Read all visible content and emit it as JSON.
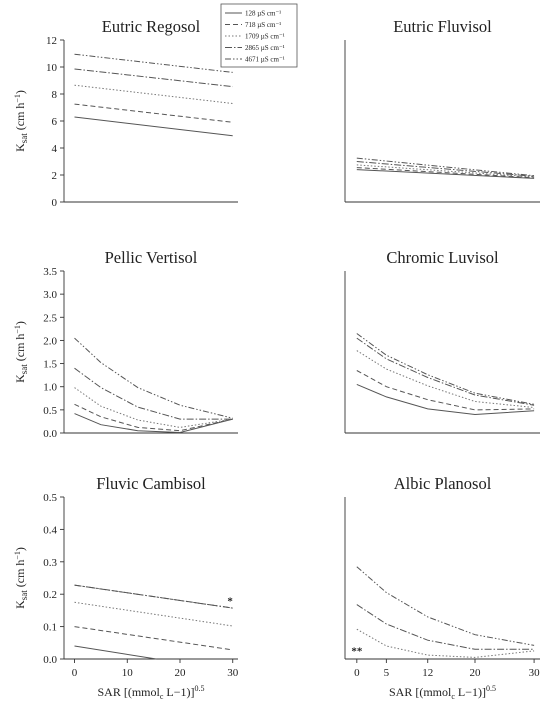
{
  "legend": {
    "entries": [
      "128 µS cm⁻¹",
      "718 µS cm⁻¹",
      "1709 µS cm⁻¹",
      "2865 µS cm⁻¹",
      "4671 µS cm⁻¹"
    ]
  },
  "series_styles": [
    {
      "color": "#555555",
      "dash": ""
    },
    {
      "color": "#555555",
      "dash": "5,3"
    },
    {
      "color": "#777777",
      "dash": "1.5,2"
    },
    {
      "color": "#555555",
      "dash": "7,2,1.5,2"
    },
    {
      "color": "#555555",
      "dash": "6,2,1.5,2,1.5,2"
    }
  ],
  "ylabel_parts": {
    "main": "K",
    "sub": "sat",
    "rest": " (cm h",
    "sup": "−1",
    "close": ")"
  },
  "xlabel_text": "SAR [(mmol",
  "xlabel_sub": "c",
  "xlabel_mid": " L−1)]",
  "xlabel_sup": "0.5",
  "chart_data": [
    {
      "type": "line",
      "title": "Eutric Regosol",
      "ylabel": "Ksat (cm h−1)",
      "xlabel": "",
      "ylim": [
        0,
        12
      ],
      "yticks": [
        0,
        2,
        4,
        6,
        8,
        10,
        12
      ],
      "xlim": [
        -2,
        31
      ],
      "show_y_ticks": true,
      "show_x_ticks": false,
      "series": [
        {
          "x": [
            0,
            30
          ],
          "values": [
            6.3,
            4.9
          ]
        },
        {
          "x": [
            0,
            30
          ],
          "values": [
            7.25,
            5.9
          ]
        },
        {
          "x": [
            0,
            30
          ],
          "values": [
            8.65,
            7.3
          ]
        },
        {
          "x": [
            0,
            30
          ],
          "values": [
            9.85,
            8.55
          ]
        },
        {
          "x": [
            0,
            30
          ],
          "values": [
            10.95,
            9.6
          ]
        }
      ],
      "annotation": ""
    },
    {
      "type": "line",
      "title": "Eutric Fluvisol",
      "ylabel": "",
      "xlabel": "",
      "ylim": [
        0,
        12
      ],
      "xlim": [
        -2,
        31
      ],
      "show_y_ticks": false,
      "show_x_ticks": false,
      "series": [
        {
          "x": [
            0,
            30
          ],
          "values": [
            2.4,
            1.75
          ]
        },
        {
          "x": [
            0,
            30
          ],
          "values": [
            2.55,
            1.8
          ]
        },
        {
          "x": [
            0,
            30
          ],
          "values": [
            2.75,
            1.85
          ]
        },
        {
          "x": [
            0,
            30
          ],
          "values": [
            3.0,
            1.9
          ]
        },
        {
          "x": [
            0,
            30
          ],
          "values": [
            3.25,
            1.95
          ]
        }
      ],
      "annotation": ""
    },
    {
      "type": "line",
      "title": "Pellic Vertisol",
      "ylabel": "Ksat (cm h−1)",
      "xlabel": "",
      "ylim": [
        0,
        3.5
      ],
      "yticks": [
        0.0,
        0.5,
        1.0,
        1.5,
        2.0,
        2.5,
        3.0,
        3.5
      ],
      "ytick_labels": [
        "0.0",
        "0.5",
        "1.0",
        "1.5",
        "2.0",
        "2.5",
        "3.0",
        "3.5"
      ],
      "xlim": [
        -2,
        31
      ],
      "show_y_ticks": true,
      "show_x_ticks": false,
      "series": [
        {
          "x": [
            0,
            5,
            12,
            20,
            30
          ],
          "values": [
            0.42,
            0.18,
            0.05,
            0.01,
            0.3
          ]
        },
        {
          "x": [
            0,
            5,
            12,
            20,
            30
          ],
          "values": [
            0.62,
            0.35,
            0.12,
            0.05,
            0.3
          ]
        },
        {
          "x": [
            0,
            5,
            12,
            20,
            30
          ],
          "values": [
            0.98,
            0.58,
            0.28,
            0.12,
            0.3
          ]
        },
        {
          "x": [
            0,
            5,
            12,
            20,
            30
          ],
          "values": [
            1.4,
            0.98,
            0.56,
            0.3,
            0.3
          ]
        },
        {
          "x": [
            0,
            5,
            12,
            20,
            30
          ],
          "values": [
            2.05,
            1.52,
            0.98,
            0.6,
            0.32
          ]
        }
      ],
      "annotation": ""
    },
    {
      "type": "line",
      "title": "Chromic Luvisol",
      "ylabel": "",
      "xlabel": "",
      "ylim": [
        0,
        3.5
      ],
      "xlim": [
        -2,
        31
      ],
      "show_y_ticks": false,
      "show_x_ticks": false,
      "series": [
        {
          "x": [
            0,
            5,
            12,
            20,
            30
          ],
          "values": [
            1.05,
            0.78,
            0.52,
            0.4,
            0.48
          ]
        },
        {
          "x": [
            0,
            5,
            12,
            20,
            30
          ],
          "values": [
            1.35,
            1.0,
            0.72,
            0.5,
            0.52
          ]
        },
        {
          "x": [
            0,
            5,
            12,
            20,
            30
          ],
          "values": [
            1.78,
            1.38,
            1.02,
            0.68,
            0.55
          ]
        },
        {
          "x": [
            0,
            5,
            12,
            20,
            30
          ],
          "values": [
            2.05,
            1.6,
            1.2,
            0.82,
            0.6
          ]
        },
        {
          "x": [
            0,
            5,
            12,
            20,
            30
          ],
          "values": [
            2.15,
            1.68,
            1.26,
            0.86,
            0.62
          ]
        }
      ],
      "annotation": ""
    },
    {
      "type": "line",
      "title": "Fluvic Cambisol",
      "ylabel": "Ksat (cm h−1)",
      "xlabel": "SAR [(mmolc L−1)]0.5",
      "ylim": [
        0,
        0.5
      ],
      "yticks": [
        0.0,
        0.1,
        0.2,
        0.3,
        0.4,
        0.5
      ],
      "ytick_labels": [
        "0.0",
        "0.1",
        "0.2",
        "0.3",
        "0.4",
        "0.5"
      ],
      "xlim": [
        -2,
        31
      ],
      "xticks": [
        0,
        10,
        20,
        30
      ],
      "show_y_ticks": true,
      "show_x_ticks": true,
      "series": [
        {
          "x": [
            0,
            15.5
          ],
          "values": [
            0.04,
            0.0
          ]
        },
        {
          "x": [
            0,
            30
          ],
          "values": [
            0.1,
            0.028
          ]
        },
        {
          "x": [
            0,
            30
          ],
          "values": [
            0.175,
            0.102
          ]
        },
        {
          "x": [
            0,
            30
          ],
          "values": [
            0.228,
            0.157
          ]
        },
        {
          "x": [
            0,
            30
          ],
          "values": [
            0.228,
            0.157
          ]
        }
      ],
      "annotation": "*",
      "annotation_at": [
        29.5,
        0.168
      ]
    },
    {
      "type": "line",
      "title": "Albic Planosol",
      "ylabel": "",
      "xlabel": "SAR [(mmolc L−1)]0.5",
      "ylim": [
        0,
        0.5
      ],
      "xlim": [
        -2,
        31
      ],
      "xticks": [
        0,
        5,
        12,
        20,
        30
      ],
      "show_y_ticks": false,
      "show_x_ticks": true,
      "series": [
        {
          "x": [],
          "values": []
        },
        {
          "x": [],
          "values": []
        },
        {
          "x": [
            0,
            5,
            12,
            20,
            30
          ],
          "values": [
            0.092,
            0.04,
            0.012,
            0.005,
            0.025
          ]
        },
        {
          "x": [
            0,
            5,
            12,
            20,
            30
          ],
          "values": [
            0.168,
            0.108,
            0.058,
            0.03,
            0.03
          ]
        },
        {
          "x": [
            0,
            5,
            12,
            20,
            30
          ],
          "values": [
            0.285,
            0.205,
            0.13,
            0.075,
            0.042
          ]
        }
      ],
      "annotation": "**",
      "annotation_at": [
        0,
        0.014
      ]
    }
  ]
}
